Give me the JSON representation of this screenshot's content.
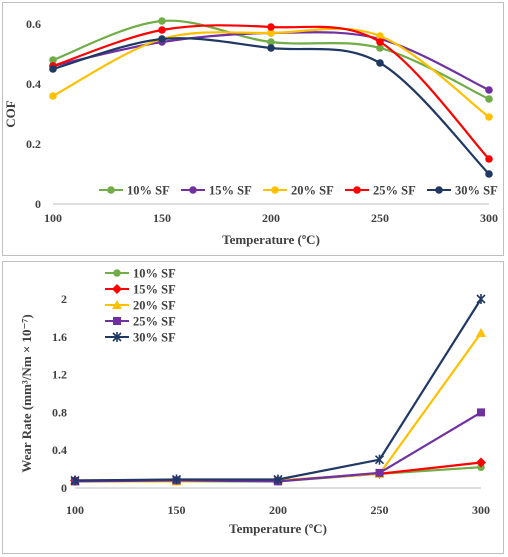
{
  "chart_data": [
    {
      "type": "line",
      "smooth": true,
      "title": "",
      "xlabel": "Temperature (ºC)",
      "ylabel": "COF",
      "x": [
        100,
        150,
        200,
        250,
        300
      ],
      "xlim": [
        100,
        300
      ],
      "ylim": [
        0,
        0.6
      ],
      "yticks": [
        "0",
        "0.2",
        "0.4",
        "0.6"
      ],
      "xticks": [
        "100",
        "150",
        "200",
        "250",
        "300"
      ],
      "grid": false,
      "legend_placement": "bottom",
      "series": [
        {
          "name": "10% SF",
          "color": "#70ad47",
          "values": [
            0.48,
            0.61,
            0.54,
            0.52,
            0.35
          ]
        },
        {
          "name": "15% SF",
          "color": "#7030a0",
          "values": [
            0.46,
            0.54,
            0.57,
            0.55,
            0.38
          ]
        },
        {
          "name": "20% SF",
          "color": "#ffc000",
          "values": [
            0.36,
            0.55,
            0.57,
            0.56,
            0.29
          ]
        },
        {
          "name": "25% SF",
          "color": "#ff0000",
          "values": [
            0.46,
            0.58,
            0.59,
            0.54,
            0.15
          ]
        },
        {
          "name": "30% SF",
          "color": "#203864",
          "values": [
            0.45,
            0.55,
            0.52,
            0.47,
            0.1
          ]
        }
      ]
    },
    {
      "type": "line",
      "smooth": false,
      "title": "",
      "xlabel": "Temperature (ºC)",
      "ylabel": "Wear Rate (mm³/Nm × 10⁻⁷)",
      "x": [
        100,
        150,
        200,
        250,
        300
      ],
      "xlim": [
        100,
        300
      ],
      "ylim": [
        0,
        2
      ],
      "yticks": [
        "0",
        "0.4",
        "0.8",
        "1.2",
        "1.6",
        "2"
      ],
      "xticks": [
        "100",
        "150",
        "200",
        "250",
        "300"
      ],
      "grid": false,
      "legend_placement": "top-left",
      "series": [
        {
          "name": "10% SF",
          "color": "#70ad47",
          "marker": "circle",
          "values": [
            0.07,
            0.07,
            0.07,
            0.15,
            0.22
          ]
        },
        {
          "name": "15% SF",
          "color": "#ff0000",
          "marker": "diamond",
          "values": [
            0.08,
            0.08,
            0.08,
            0.15,
            0.27
          ]
        },
        {
          "name": "20% SF",
          "color": "#ffc000",
          "marker": "triangle",
          "values": [
            0.07,
            0.07,
            0.08,
            0.15,
            1.64
          ]
        },
        {
          "name": "25% SF",
          "color": "#7030a0",
          "marker": "square",
          "values": [
            0.07,
            0.08,
            0.07,
            0.16,
            0.8
          ]
        },
        {
          "name": "30% SF",
          "color": "#203864",
          "marker": "star",
          "values": [
            0.08,
            0.09,
            0.09,
            0.3,
            2.0
          ]
        }
      ]
    }
  ]
}
